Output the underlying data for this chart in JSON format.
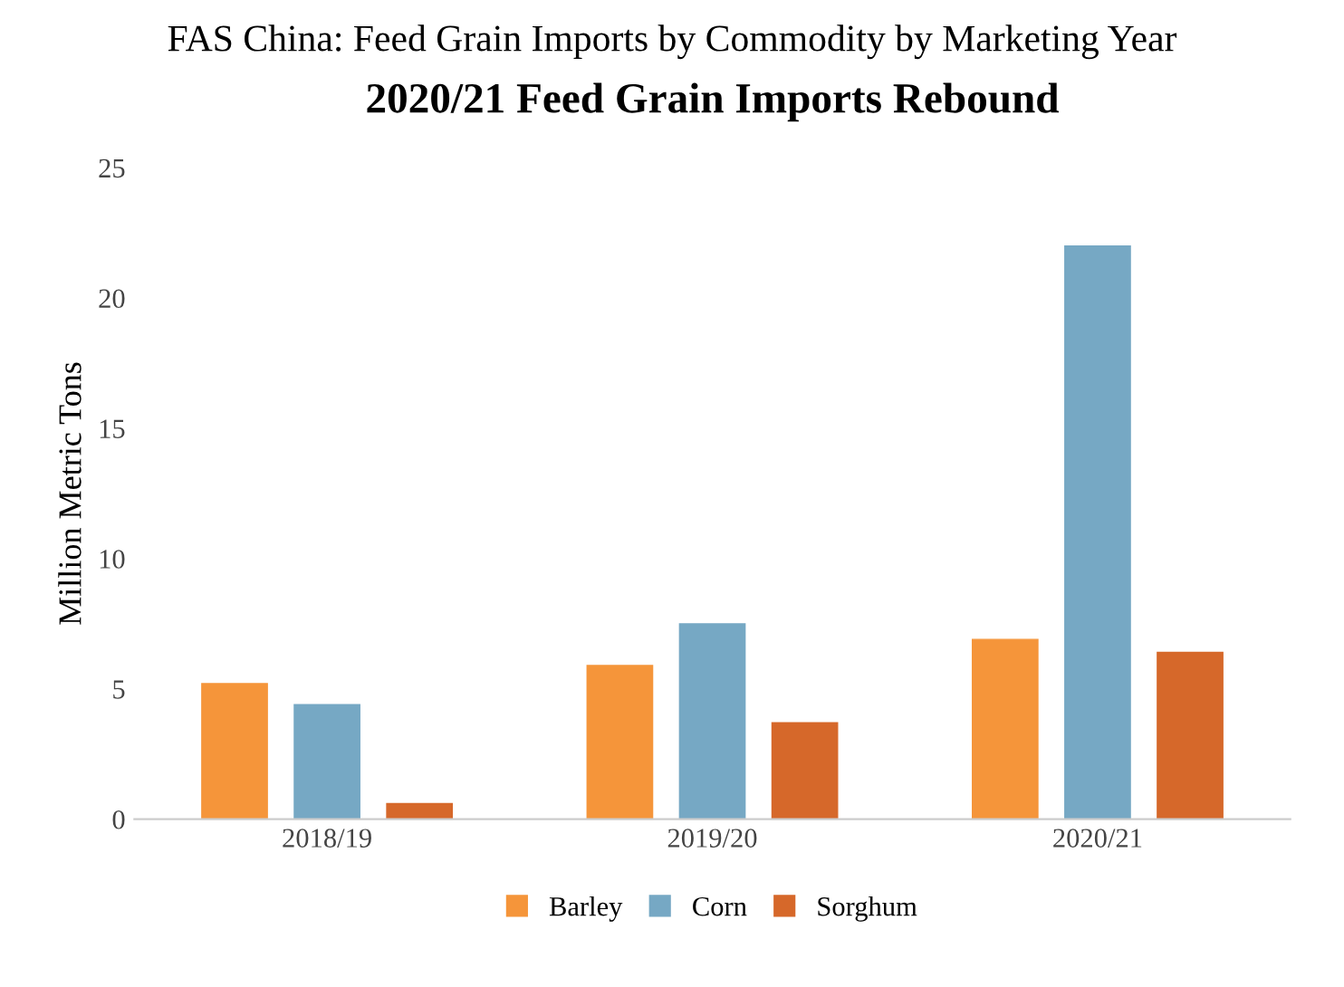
{
  "chart_data": {
    "type": "bar",
    "title": "FAS China: Feed Grain Imports by Commodity by Marketing Year",
    "subtitle": "2020/21 Feed Grain Imports Rebound",
    "ylabel": "Million Metric Tons",
    "categories": [
      "2018/19",
      "2019/20",
      "2020/21"
    ],
    "series": [
      {
        "name": "Barley",
        "color": "#f5953a",
        "values": [
          5.2,
          5.9,
          6.9
        ]
      },
      {
        "name": "Corn",
        "color": "#76a8c4",
        "values": [
          4.4,
          7.5,
          22.0
        ]
      },
      {
        "name": "Sorghum",
        "color": "#d6682a",
        "values": [
          0.6,
          3.7,
          6.4
        ]
      }
    ],
    "ylim": [
      0,
      25
    ],
    "yticks": [
      0,
      5,
      10,
      15,
      20,
      25
    ],
    "grid": false,
    "legend": "bottom"
  }
}
